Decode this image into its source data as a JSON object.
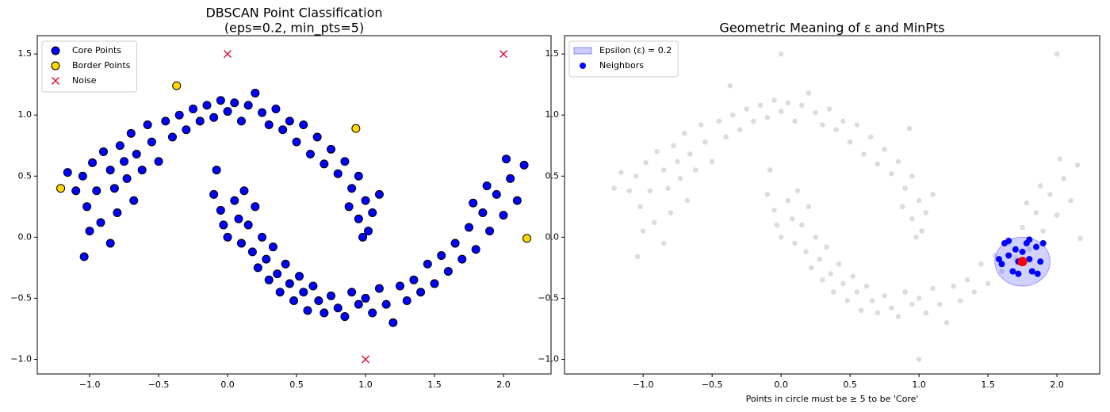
{
  "chart_data": [
    {
      "type": "scatter",
      "title": [
        "DBSCAN Point Classification",
        "(eps=0.2, min_pts=5)"
      ],
      "xlim": [
        -1.38,
        2.345
      ],
      "ylim": [
        -1.12,
        1.65
      ],
      "xticks": [
        {
          "value": -1,
          "label": "−1.0"
        },
        {
          "value": -0.5,
          "label": "−0.5"
        },
        {
          "value": 0,
          "label": "0.0"
        },
        0.5,
        {
          "value": 1,
          "label": "1.0"
        },
        1.5,
        {
          "value": 2,
          "label": "2.0"
        }
      ],
      "yticks": [
        {
          "value": -1,
          "label": "−1.0"
        },
        {
          "value": -0.5,
          "label": "−0.5"
        },
        {
          "value": 0,
          "label": "0.0"
        },
        0.5,
        {
          "value": 1,
          "label": "1.0"
        },
        1.5
      ],
      "legend": "upper left",
      "series": [
        {
          "name": "Core Points",
          "color": "#0000ff",
          "edgecolor": "#000000",
          "marker": "o",
          "x": [
            -1.16,
            -1.1,
            -1.05,
            -1.02,
            -0.98,
            -0.95,
            -0.92,
            -1.0,
            -1.04,
            -0.9,
            -0.85,
            -0.82,
            -0.78,
            -0.75,
            -0.73,
            -0.8,
            -0.7,
            -0.66,
            -0.62,
            -0.58,
            -0.55,
            -0.5,
            -0.45,
            -0.4,
            -0.35,
            -0.3,
            -0.25,
            -0.2,
            -0.15,
            -0.1,
            -0.05,
            0,
            0.05,
            0.1,
            0.15,
            0.2,
            0.25,
            0.3,
            0.35,
            0.4,
            0.45,
            0.5,
            0.55,
            0.6,
            0.65,
            0.7,
            0.75,
            0.8,
            0.85,
            0.9,
            0.95,
            0.88,
            0.95,
            1.0,
            1.05,
            1.02,
            0.98,
            1.1,
            -0.68,
            -0.85,
            -0.1,
            -0.05,
            -0.08,
            -0.03,
            0,
            0.05,
            0.08,
            0.1,
            0.12,
            0.15,
            0.18,
            0.2,
            0.22,
            0.25,
            0.28,
            0.3,
            0.33,
            0.36,
            0.38,
            0.42,
            0.45,
            0.48,
            0.52,
            0.55,
            0.58,
            0.62,
            0.66,
            0.7,
            0.75,
            0.8,
            0.85,
            0.9,
            0.95,
            1.0,
            1.05,
            1.1,
            1.15,
            1.2,
            1.25,
            1.3,
            1.35,
            1.4,
            1.45,
            1.5,
            1.55,
            1.6,
            1.65,
            1.7,
            1.75,
            1.8,
            1.85,
            1.9,
            1.95,
            2.0,
            2.05,
            2.1,
            2.15,
            2.02,
            1.88,
            1.78
          ],
          "y": [
            0.53,
            0.38,
            0.5,
            0.25,
            0.61,
            0.38,
            0.12,
            0.05,
            -0.16,
            0.7,
            0.55,
            0.4,
            0.75,
            0.62,
            0.48,
            0.2,
            0.85,
            0.68,
            0.55,
            0.92,
            0.78,
            0.62,
            0.95,
            0.82,
            1.0,
            0.88,
            1.05,
            0.95,
            1.08,
            0.98,
            1.12,
            1.03,
            1.1,
            0.95,
            1.08,
            1.18,
            1.02,
            0.92,
            1.05,
            0.88,
            0.95,
            0.78,
            0.92,
            0.68,
            0.82,
            0.6,
            0.72,
            0.52,
            0.62,
            0.4,
            0.5,
            0.25,
            0.15,
            0.3,
            0.2,
            0.05,
            0,
            0.35,
            0.3,
            -0.05,
            0.35,
            0.22,
            0.55,
            0.1,
            0,
            0.3,
            0.15,
            -0.05,
            0.38,
            0.1,
            -0.12,
            0.25,
            -0.25,
            0,
            -0.18,
            -0.35,
            -0.08,
            -0.3,
            -0.45,
            -0.22,
            -0.38,
            -0.52,
            -0.32,
            -0.45,
            -0.6,
            -0.4,
            -0.52,
            -0.62,
            -0.48,
            -0.58,
            -0.65,
            -0.45,
            -0.55,
            -0.5,
            -0.62,
            -0.42,
            -0.55,
            -0.7,
            -0.4,
            -0.52,
            -0.35,
            -0.45,
            -0.22,
            -0.38,
            -0.15,
            -0.28,
            -0.05,
            -0.18,
            0.08,
            -0.1,
            0.2,
            0.05,
            0.35,
            0.18,
            0.48,
            0.3,
            0.59,
            0.64,
            0.42,
            0.28
          ]
        },
        {
          "name": "Border Points",
          "color": "#ffd700",
          "edgecolor": "#000000",
          "marker": "o",
          "x": [
            -1.21,
            -0.37,
            0.93,
            2.17
          ],
          "y": [
            0.4,
            1.24,
            0.89,
            -0.01
          ]
        },
        {
          "name": "Noise",
          "color": "#dc143c",
          "marker": "x",
          "x": [
            0,
            2,
            1
          ],
          "y": [
            1.5,
            1.5,
            -1
          ]
        }
      ]
    },
    {
      "type": "scatter",
      "title": [
        "Geometric Meaning of ε and MinPts"
      ],
      "xlabel": "Points in circle must be ≥ 5 to be 'Core'",
      "xlim": [
        -1.57,
        2.31
      ],
      "ylim": [
        -1.12,
        1.65
      ],
      "xticks": [
        {
          "value": -1,
          "label": "−1.0"
        },
        {
          "value": -0.5,
          "label": "−0.5"
        },
        {
          "value": 0,
          "label": "0.0"
        },
        0.5,
        {
          "value": 1,
          "label": "1.0"
        },
        1.5,
        {
          "value": 2,
          "label": "2.0"
        }
      ],
      "yticks": [
        {
          "value": -1,
          "label": "−1.0"
        },
        {
          "value": -0.5,
          "label": "−0.5"
        },
        {
          "value": 0,
          "label": "0.0"
        },
        0.5,
        {
          "value": 1,
          "label": "1.0"
        },
        1.5
      ],
      "legend": "upper left",
      "circle": {
        "name": "Epsilon (ε) = 0.2",
        "x": 1.75,
        "y": -0.2,
        "radius": 0.2,
        "color": "#0000ff",
        "center_color": "#ff0000"
      },
      "series": [
        {
          "color": "#dcdcdc",
          "marker": "o",
          "x": [
            -1.16,
            -1.1,
            -1.05,
            -1.02,
            -0.98,
            -0.95,
            -0.92,
            -1.0,
            -1.04,
            -0.9,
            -0.85,
            -0.82,
            -0.78,
            -0.75,
            -0.73,
            -0.8,
            -0.7,
            -0.66,
            -0.62,
            -0.58,
            -0.55,
            -0.5,
            -0.45,
            -0.4,
            -0.35,
            -0.3,
            -0.25,
            -0.2,
            -0.15,
            -0.1,
            -0.05,
            0,
            0.05,
            0.1,
            0.15,
            0.2,
            0.25,
            0.3,
            0.35,
            0.4,
            0.45,
            0.5,
            0.55,
            0.6,
            0.65,
            0.7,
            0.75,
            0.8,
            0.85,
            0.9,
            0.95,
            0.88,
            0.95,
            1.0,
            1.05,
            1.02,
            0.98,
            1.1,
            -0.68,
            -0.85,
            -0.1,
            -0.05,
            -0.08,
            -0.03,
            0,
            0.05,
            0.08,
            0.1,
            0.12,
            0.15,
            0.18,
            0.2,
            0.22,
            0.25,
            0.28,
            0.3,
            0.33,
            0.36,
            0.38,
            0.42,
            0.45,
            0.48,
            0.52,
            0.55,
            0.58,
            0.62,
            0.66,
            0.7,
            0.75,
            0.8,
            0.85,
            0.9,
            0.95,
            1.0,
            1.05,
            1.1,
            1.15,
            1.2,
            1.25,
            1.3,
            1.35,
            1.4,
            1.45,
            1.5,
            1.55,
            1.6,
            1.65,
            1.7,
            1.75,
            1.8,
            1.85,
            1.9,
            1.95,
            2.0,
            2.05,
            2.1,
            2.15,
            2.02,
            1.88,
            1.78,
            -1.21,
            -0.37,
            0.93,
            2.17,
            0,
            2,
            1
          ],
          "y": [
            0.53,
            0.38,
            0.5,
            0.25,
            0.61,
            0.38,
            0.12,
            0.05,
            -0.16,
            0.7,
            0.55,
            0.4,
            0.75,
            0.62,
            0.48,
            0.2,
            0.85,
            0.68,
            0.55,
            0.92,
            0.78,
            0.62,
            0.95,
            0.82,
            1.0,
            0.88,
            1.05,
            0.95,
            1.08,
            0.98,
            1.12,
            1.03,
            1.1,
            0.95,
            1.08,
            1.18,
            1.02,
            0.92,
            1.05,
            0.88,
            0.95,
            0.78,
            0.92,
            0.68,
            0.82,
            0.6,
            0.72,
            0.52,
            0.62,
            0.4,
            0.5,
            0.25,
            0.15,
            0.3,
            0.2,
            0.05,
            0,
            0.35,
            0.3,
            -0.05,
            0.35,
            0.22,
            0.55,
            0.1,
            0,
            0.3,
            0.15,
            -0.05,
            0.38,
            0.1,
            -0.12,
            0.25,
            -0.25,
            0,
            -0.18,
            -0.35,
            -0.08,
            -0.3,
            -0.45,
            -0.22,
            -0.38,
            -0.52,
            -0.32,
            -0.45,
            -0.6,
            -0.4,
            -0.52,
            -0.62,
            -0.48,
            -0.58,
            -0.65,
            -0.45,
            -0.55,
            -0.5,
            -0.62,
            -0.42,
            -0.55,
            -0.7,
            -0.4,
            -0.52,
            -0.35,
            -0.45,
            -0.22,
            -0.38,
            -0.15,
            -0.28,
            -0.05,
            -0.18,
            0.08,
            -0.1,
            0.2,
            0.05,
            0.35,
            0.18,
            0.48,
            0.3,
            0.59,
            0.64,
            0.42,
            0.28,
            0.4,
            1.24,
            0.89,
            -0.01,
            1.5,
            1.5,
            -1
          ]
        },
        {
          "name": "Neighbors",
          "color": "#0000ff",
          "marker": "o",
          "x": [
            1.6,
            1.62,
            1.65,
            1.68,
            1.7,
            1.72,
            1.75,
            1.78,
            1.8,
            1.82,
            1.85,
            1.88,
            1.9,
            1.72,
            1.65,
            1.58,
            1.86,
            1.8
          ],
          "y": [
            -0.22,
            -0.05,
            -0.15,
            -0.28,
            -0.1,
            -0.2,
            -0.12,
            -0.05,
            -0.18,
            -0.28,
            -0.08,
            -0.2,
            -0.05,
            -0.3,
            -0.03,
            -0.18,
            -0.3,
            -0.02
          ]
        }
      ]
    }
  ]
}
